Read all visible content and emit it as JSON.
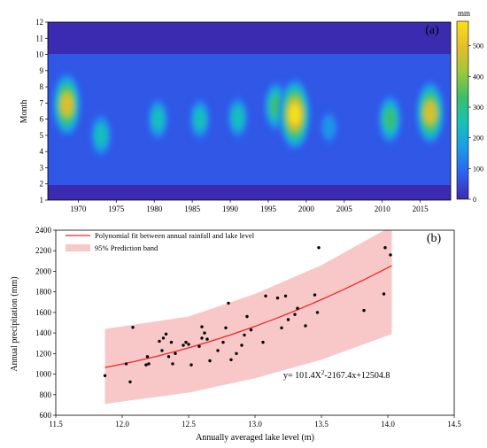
{
  "chart_data": [
    {
      "type": "heatmap",
      "panel_label": "(a)",
      "ylabel": "Month",
      "x_ticks": [
        1970,
        1975,
        1980,
        1985,
        1990,
        1995,
        2000,
        2005,
        2010,
        2015
      ],
      "xlim": [
        1966,
        2019
      ],
      "y_ticks": [
        1,
        2,
        3,
        4,
        5,
        6,
        7,
        8,
        9,
        10,
        11,
        12
      ],
      "ylim": [
        1,
        12
      ],
      "colorbar": {
        "unit": "mm",
        "ticks": [
          0,
          100,
          200,
          300,
          400,
          500
        ],
        "range": [
          0,
          580
        ],
        "colors": [
          "#3a2bb0",
          "#2f5ff0",
          "#1a9be8",
          "#14c2b8",
          "#3cbf6a",
          "#9bc83a",
          "#e6bd2c",
          "#f8e21a"
        ]
      },
      "hotspots": [
        {
          "year": 1968.5,
          "month": 6.9,
          "value": 470
        },
        {
          "year": 1973,
          "month": 5.0,
          "value": 260
        },
        {
          "year": 1980.5,
          "month": 6.0,
          "value": 250
        },
        {
          "year": 1986,
          "month": 6.0,
          "value": 240
        },
        {
          "year": 1991,
          "month": 6.1,
          "value": 250
        },
        {
          "year": 1996,
          "month": 6.8,
          "value": 330
        },
        {
          "year": 1998.5,
          "month": 6.3,
          "value": 560
        },
        {
          "year": 2003,
          "month": 5.5,
          "value": 150
        },
        {
          "year": 2011,
          "month": 6.0,
          "value": 320
        },
        {
          "year": 2016.3,
          "month": 6.4,
          "value": 470
        }
      ]
    },
    {
      "type": "scatter",
      "panel_label": "(b)",
      "xlabel": "Annually  averaged lake  level  (m)",
      "ylabel": "Annual  precipitation  (mm)",
      "xlim": [
        11.5,
        14.5
      ],
      "ylim": [
        600,
        2400
      ],
      "x_ticks": [
        11.5,
        12.0,
        12.5,
        13.0,
        13.5,
        14.0,
        14.5
      ],
      "y_ticks": [
        600,
        800,
        1000,
        1200,
        1400,
        1600,
        1800,
        2000,
        2200,
        2400
      ],
      "legend_fit": "Polynomial fit between annual rainfall and lake level",
      "legend_band": "95%  Prediction band",
      "equation": "y= 101.4X",
      "equation_sup": "2",
      "equation_rest": "-2167.4x+12504.8",
      "fit": {
        "a": 101.4,
        "b": -2167.4,
        "c": 12504.8,
        "x_range": [
          11.87,
          14.03
        ]
      },
      "band": {
        "lower": [
          [
            11.87,
            710
          ],
          [
            12.5,
            820
          ],
          [
            13.0,
            960
          ],
          [
            13.5,
            1140
          ],
          [
            14.03,
            1390
          ]
        ],
        "upper": [
          [
            11.87,
            1440
          ],
          [
            12.5,
            1560
          ],
          [
            13.0,
            1780
          ],
          [
            13.5,
            2060
          ],
          [
            14.03,
            2440
          ]
        ]
      },
      "colors": {
        "fit": "#e8282a",
        "band": "#f8c8c8",
        "points": "#000000"
      },
      "points": [
        [
          11.87,
          985
        ],
        [
          12.03,
          1100
        ],
        [
          12.06,
          925
        ],
        [
          12.08,
          1455
        ],
        [
          12.18,
          1090
        ],
        [
          12.19,
          1170
        ],
        [
          12.2,
          1100
        ],
        [
          12.28,
          1320
        ],
        [
          12.3,
          1230
        ],
        [
          12.31,
          1350
        ],
        [
          12.33,
          1390
        ],
        [
          12.35,
          1170
        ],
        [
          12.37,
          1310
        ],
        [
          12.38,
          1100
        ],
        [
          12.4,
          1200
        ],
        [
          12.46,
          1280
        ],
        [
          12.48,
          1310
        ],
        [
          12.5,
          1290
        ],
        [
          12.52,
          1090
        ],
        [
          12.58,
          1270
        ],
        [
          12.6,
          1350
        ],
        [
          12.6,
          1460
        ],
        [
          12.62,
          1400
        ],
        [
          12.64,
          1340
        ],
        [
          12.66,
          1130
        ],
        [
          12.72,
          1230
        ],
        [
          12.76,
          1310
        ],
        [
          12.78,
          1450
        ],
        [
          12.8,
          1690
        ],
        [
          12.82,
          1140
        ],
        [
          12.86,
          1200
        ],
        [
          12.9,
          1280
        ],
        [
          12.92,
          1380
        ],
        [
          12.94,
          1560
        ],
        [
          12.97,
          1430
        ],
        [
          13.06,
          1310
        ],
        [
          13.08,
          1760
        ],
        [
          13.17,
          1740
        ],
        [
          13.2,
          1450
        ],
        [
          13.23,
          1760
        ],
        [
          13.25,
          1530
        ],
        [
          13.3,
          1580
        ],
        [
          13.32,
          1640
        ],
        [
          13.38,
          1470
        ],
        [
          13.45,
          1770
        ],
        [
          13.47,
          1600
        ],
        [
          13.48,
          2230
        ],
        [
          13.82,
          1620
        ],
        [
          13.97,
          1780
        ],
        [
          13.98,
          2230
        ],
        [
          14.02,
          2160
        ]
      ]
    }
  ]
}
